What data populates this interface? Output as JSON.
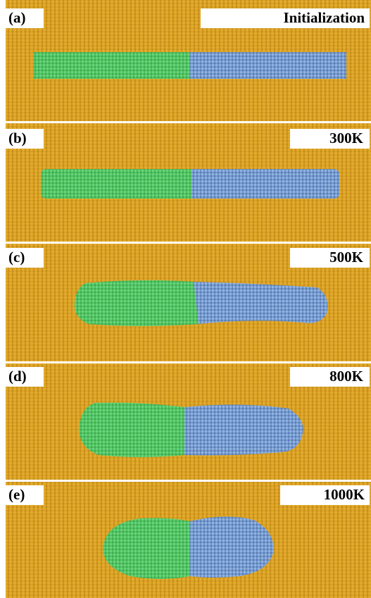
{
  "panels": [
    {
      "label": "(a)",
      "title": "Initialization"
    },
    {
      "label": "(b)",
      "title": "300K"
    },
    {
      "label": "(c)",
      "title": "500K"
    },
    {
      "label": "(d)",
      "title": "800K"
    },
    {
      "label": "(e)",
      "title": "1000K"
    }
  ]
}
